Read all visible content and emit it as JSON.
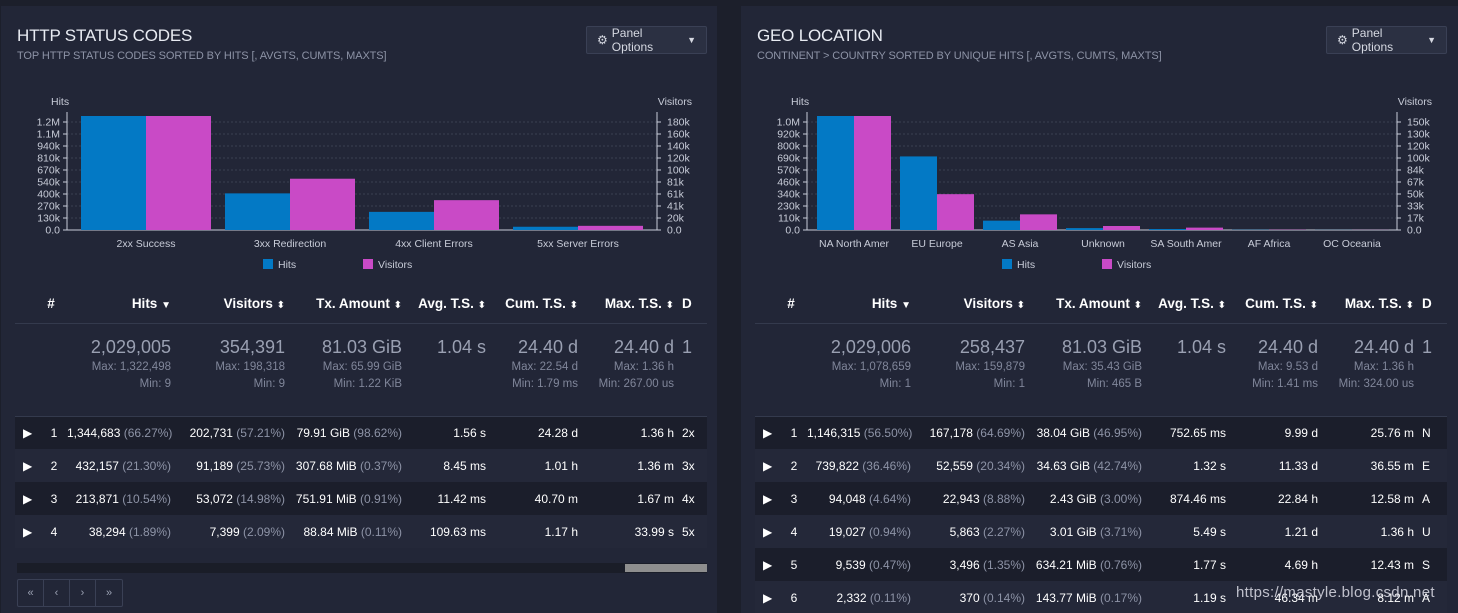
{
  "colors": {
    "hits": "#0379c5",
    "visitors": "#c94ac6",
    "grid": "#3b4052"
  },
  "panels": [
    {
      "title": "HTTP STATUS CODES",
      "subtitle": "TOP HTTP STATUS CODES SORTED BY HITS [, AVGTS, CUMTS, MAXTS]",
      "options_label": "Panel Options",
      "chart_data": {
        "type": "bar",
        "categories": [
          "2xx Success",
          "3xx Redirection",
          "4xx Client Errors",
          "5xx Server Errors"
        ],
        "series": [
          {
            "name": "Hits",
            "axis": "left",
            "values": [
              1344683,
              432157,
              213871,
              38294
            ]
          },
          {
            "name": "Visitors",
            "axis": "right",
            "values": [
              202731,
              91189,
              53072,
              7399
            ]
          }
        ],
        "left_axis": {
          "label": "Hits",
          "ticks": [
            "0.0",
            "130k",
            "270k",
            "400k",
            "540k",
            "670k",
            "810k",
            "940k",
            "1.1M",
            "1.2M"
          ],
          "max": 1344683
        },
        "right_axis": {
          "label": "Visitors",
          "ticks": [
            "0.0",
            "20k",
            "41k",
            "61k",
            "81k",
            "100k",
            "120k",
            "140k",
            "160k",
            "180k"
          ],
          "max": 202731
        },
        "legend": [
          "Hits",
          "Visitors"
        ]
      },
      "columns": [
        "#",
        "Hits",
        "Visitors",
        "Tx. Amount",
        "Avg. T.S.",
        "Cum. T.S.",
        "Max. T.S.",
        "D"
      ],
      "summary": {
        "hits": {
          "value": "2,029,005",
          "max": "Max: 1,322,498",
          "min": "Min: 9"
        },
        "visitors": {
          "value": "354,391",
          "max": "Max: 198,318",
          "min": "Min: 9"
        },
        "tx": {
          "value": "81.03 GiB",
          "max": "Max: 65.99 GiB",
          "min": "Min: 1.22 KiB"
        },
        "avg": {
          "value": "1.04 s"
        },
        "cum": {
          "value": "24.40 d",
          "max": "Max: 22.54 d",
          "min": "Min: 1.79 ms"
        },
        "maxts": {
          "value": "24.40 d",
          "max": "Max: 1.36 h",
          "min": "Min: 267.00 us"
        },
        "data": {
          "value": "1"
        }
      },
      "rows": [
        {
          "num": "1",
          "hits": "1,344,683",
          "hits_pct": "(66.27%)",
          "visitors": "202,731",
          "visitors_pct": "(57.21%)",
          "tx": "79.91 GiB",
          "tx_pct": "(98.62%)",
          "avg": "1.56 s",
          "cum": "24.28 d",
          "max": "1.36 h",
          "data": "2x"
        },
        {
          "num": "2",
          "hits": "432,157",
          "hits_pct": "(21.30%)",
          "visitors": "91,189",
          "visitors_pct": "(25.73%)",
          "tx": "307.68 MiB",
          "tx_pct": "(0.37%)",
          "avg": "8.45 ms",
          "cum": "1.01 h",
          "max": "1.36 m",
          "data": "3x"
        },
        {
          "num": "3",
          "hits": "213,871",
          "hits_pct": "(10.54%)",
          "visitors": "53,072",
          "visitors_pct": "(14.98%)",
          "tx": "751.91 MiB",
          "tx_pct": "(0.91%)",
          "avg": "11.42 ms",
          "cum": "40.70 m",
          "max": "1.67 m",
          "data": "4x"
        },
        {
          "num": "4",
          "hits": "38,294",
          "hits_pct": "(1.89%)",
          "visitors": "7,399",
          "visitors_pct": "(2.09%)",
          "tx": "88.84 MiB",
          "tx_pct": "(0.11%)",
          "avg": "109.63 ms",
          "cum": "1.17 h",
          "max": "33.99 s",
          "data": "5x"
        }
      ],
      "pager": [
        "«",
        "‹",
        "›",
        "»"
      ]
    },
    {
      "title": "GEO LOCATION",
      "subtitle": "CONTINENT > COUNTRY SORTED BY UNIQUE HITS [, AVGTS, CUMTS, MAXTS]",
      "options_label": "Panel Options",
      "chart_data": {
        "type": "bar",
        "categories": [
          "NA North Amer",
          "EU Europe",
          "AS Asia",
          "Unknown",
          "SA South Amer",
          "AF Africa",
          "OC Oceania"
        ],
        "series": [
          {
            "name": "Hits",
            "axis": "left",
            "values": [
              1146315,
              739822,
              94048,
              19027,
              9539,
              2332,
              1000
            ]
          },
          {
            "name": "Visitors",
            "axis": "right",
            "values": [
              167178,
              52559,
              22943,
              5863,
              3496,
              370,
              150
            ]
          }
        ],
        "left_axis": {
          "label": "Hits",
          "ticks": [
            "0.0",
            "110k",
            "230k",
            "340k",
            "460k",
            "570k",
            "690k",
            "800k",
            "920k",
            "1.0M"
          ],
          "max": 1146315
        },
        "right_axis": {
          "label": "Visitors",
          "ticks": [
            "0.0",
            "17k",
            "33k",
            "50k",
            "67k",
            "84k",
            "100k",
            "120k",
            "130k",
            "150k"
          ],
          "max": 167178
        },
        "legend": [
          "Hits",
          "Visitors"
        ]
      },
      "columns": [
        "#",
        "Hits",
        "Visitors",
        "Tx. Amount",
        "Avg. T.S.",
        "Cum. T.S.",
        "Max. T.S.",
        "D"
      ],
      "summary": {
        "hits": {
          "value": "2,029,006",
          "max": "Max: 1,078,659",
          "min": "Min: 1"
        },
        "visitors": {
          "value": "258,437",
          "max": "Max: 159,879",
          "min": "Min: 1"
        },
        "tx": {
          "value": "81.03 GiB",
          "max": "Max: 35.43 GiB",
          "min": "Min: 465 B"
        },
        "avg": {
          "value": "1.04 s"
        },
        "cum": {
          "value": "24.40 d",
          "max": "Max: 9.53 d",
          "min": "Min: 1.41 ms"
        },
        "maxts": {
          "value": "24.40 d",
          "max": "Max: 1.36 h",
          "min": "Min: 324.00 us"
        },
        "data": {
          "value": "1"
        }
      },
      "rows": [
        {
          "num": "1",
          "hits": "1,146,315",
          "hits_pct": "(56.50%)",
          "visitors": "167,178",
          "visitors_pct": "(64.69%)",
          "tx": "38.04 GiB",
          "tx_pct": "(46.95%)",
          "avg": "752.65 ms",
          "cum": "9.99 d",
          "max": "25.76 m",
          "data": "N"
        },
        {
          "num": "2",
          "hits": "739,822",
          "hits_pct": "(36.46%)",
          "visitors": "52,559",
          "visitors_pct": "(20.34%)",
          "tx": "34.63 GiB",
          "tx_pct": "(42.74%)",
          "avg": "1.32 s",
          "cum": "11.33 d",
          "max": "36.55 m",
          "data": "E"
        },
        {
          "num": "3",
          "hits": "94,048",
          "hits_pct": "(4.64%)",
          "visitors": "22,943",
          "visitors_pct": "(8.88%)",
          "tx": "2.43 GiB",
          "tx_pct": "(3.00%)",
          "avg": "874.46 ms",
          "cum": "22.84 h",
          "max": "12.58 m",
          "data": "A"
        },
        {
          "num": "4",
          "hits": "19,027",
          "hits_pct": "(0.94%)",
          "visitors": "5,863",
          "visitors_pct": "(2.27%)",
          "tx": "3.01 GiB",
          "tx_pct": "(3.71%)",
          "avg": "5.49 s",
          "cum": "1.21 d",
          "max": "1.36 h",
          "data": "U"
        },
        {
          "num": "5",
          "hits": "9,539",
          "hits_pct": "(0.47%)",
          "visitors": "3,496",
          "visitors_pct": "(1.35%)",
          "tx": "634.21 MiB",
          "tx_pct": "(0.76%)",
          "avg": "1.77 s",
          "cum": "4.69 h",
          "max": "12.43 m",
          "data": "S"
        },
        {
          "num": "6",
          "hits": "2,332",
          "hits_pct": "(0.11%)",
          "visitors": "370",
          "visitors_pct": "(0.14%)",
          "tx": "143.77 MiB",
          "tx_pct": "(0.17%)",
          "avg": "1.19 s",
          "cum": "46.34 m",
          "max": "8.12 m",
          "data": "A"
        }
      ]
    }
  ],
  "watermark": "https://mastyle.blog.csdn.net"
}
